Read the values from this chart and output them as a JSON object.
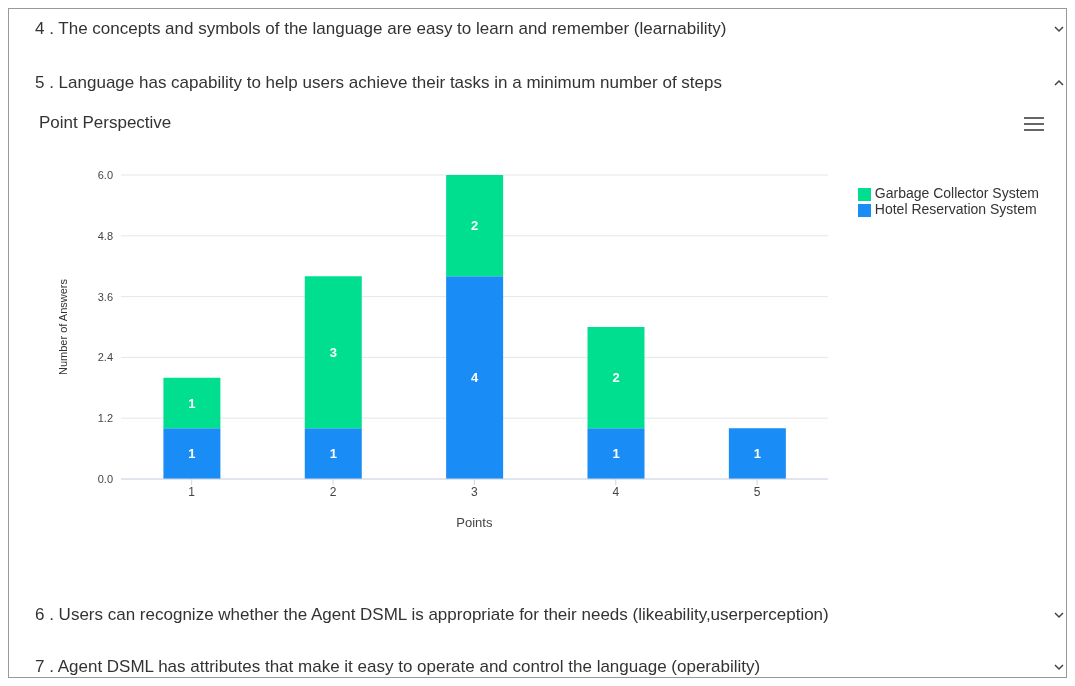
{
  "chart_data": {
    "type": "bar",
    "title": "Point Perspective",
    "subtitle": "5 . Language has capability to help users achieve their tasks in a minimum number of steps",
    "annotations": [
      "4 . The concepts and symbols of the language are easy to learn and remember (learnability)",
      "6 . Users can recognize whether the Agent DSML is appropriate for their needs (likeability,userperception)",
      "7 . Agent DSML has attributes that make it easy to operate and control the language (operability)"
    ],
    "xlabel": "Points",
    "ylabel": "Number of Answers",
    "categories": [
      "1",
      "2",
      "3",
      "4",
      "5"
    ],
    "series": [
      {
        "name": "Hotel Reservation System",
        "color": "#1a8cf5",
        "values": [
          1,
          1,
          4,
          1,
          1
        ]
      },
      {
        "name": "Garbage Collector System",
        "color": "#00df90",
        "values": [
          1,
          3,
          2,
          2,
          null
        ]
      }
    ],
    "stacked": true,
    "data_labels": true,
    "grid": "y",
    "legend": "top right",
    "ylim": [
      0,
      6
    ],
    "yticks": [
      {
        "value": 0,
        "label": "0.0"
      },
      {
        "value": 1.2,
        "label": "1.2"
      },
      {
        "value": 2.4,
        "label": "2.4"
      },
      {
        "value": 3.6,
        "label": "3.6"
      },
      {
        "value": 4.8,
        "label": "4.8"
      },
      {
        "value": 6,
        "label": "6.0"
      }
    ]
  }
}
